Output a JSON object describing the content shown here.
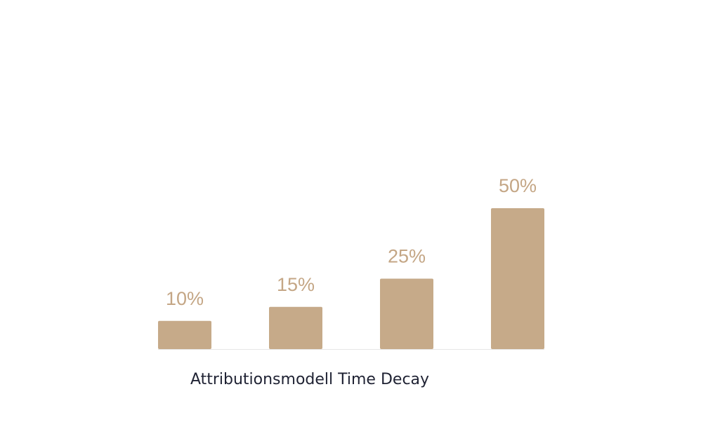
{
  "chart_data": {
    "type": "bar",
    "title": "Attributionsmodell Time Decay",
    "values": [
      10,
      15,
      25,
      50
    ],
    "value_labels": [
      "10%",
      "15%",
      "25%",
      "50%"
    ],
    "color": "#c6aa89",
    "label_color": "#c4a685"
  }
}
